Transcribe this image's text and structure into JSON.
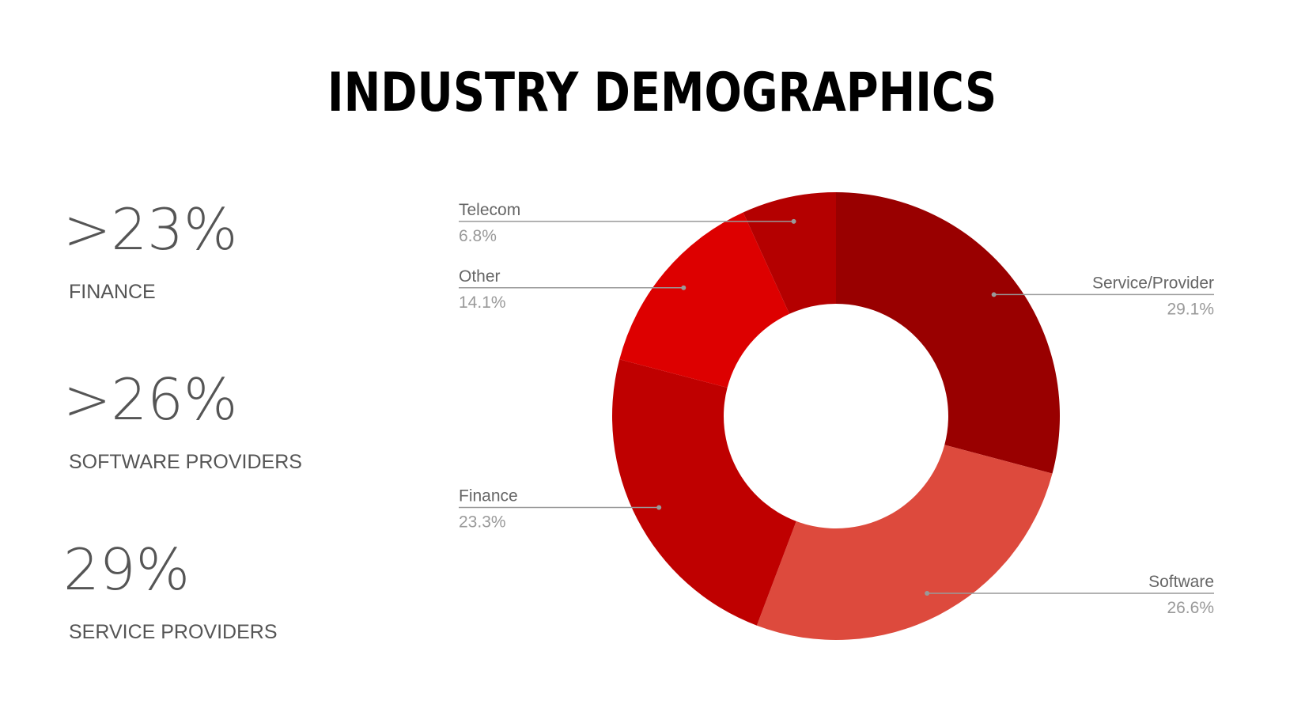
{
  "chart_data": {
    "type": "pie",
    "title": "INDUSTRY DEMOGRAPHICS",
    "categories": [
      "Service/Provider",
      "Software",
      "Finance",
      "Other",
      "Telecom"
    ],
    "values": [
      29.1,
      26.6,
      23.3,
      14.1,
      6.8
    ],
    "value_labels": [
      "29.1%",
      "26.6%",
      "23.3%",
      "14.1%",
      "6.8%"
    ],
    "colors": [
      "#990000",
      "#dd4a3d",
      "#bf0000",
      "#dd0000",
      "#b40000"
    ],
    "donut": true
  },
  "stats": [
    {
      "value": ">23%",
      "label": "FINANCE"
    },
    {
      "value": ">26%",
      "label": "SOFTWARE PROVIDERS"
    },
    {
      "value": "29%",
      "label": "SERVICE PROVIDERS"
    }
  ]
}
